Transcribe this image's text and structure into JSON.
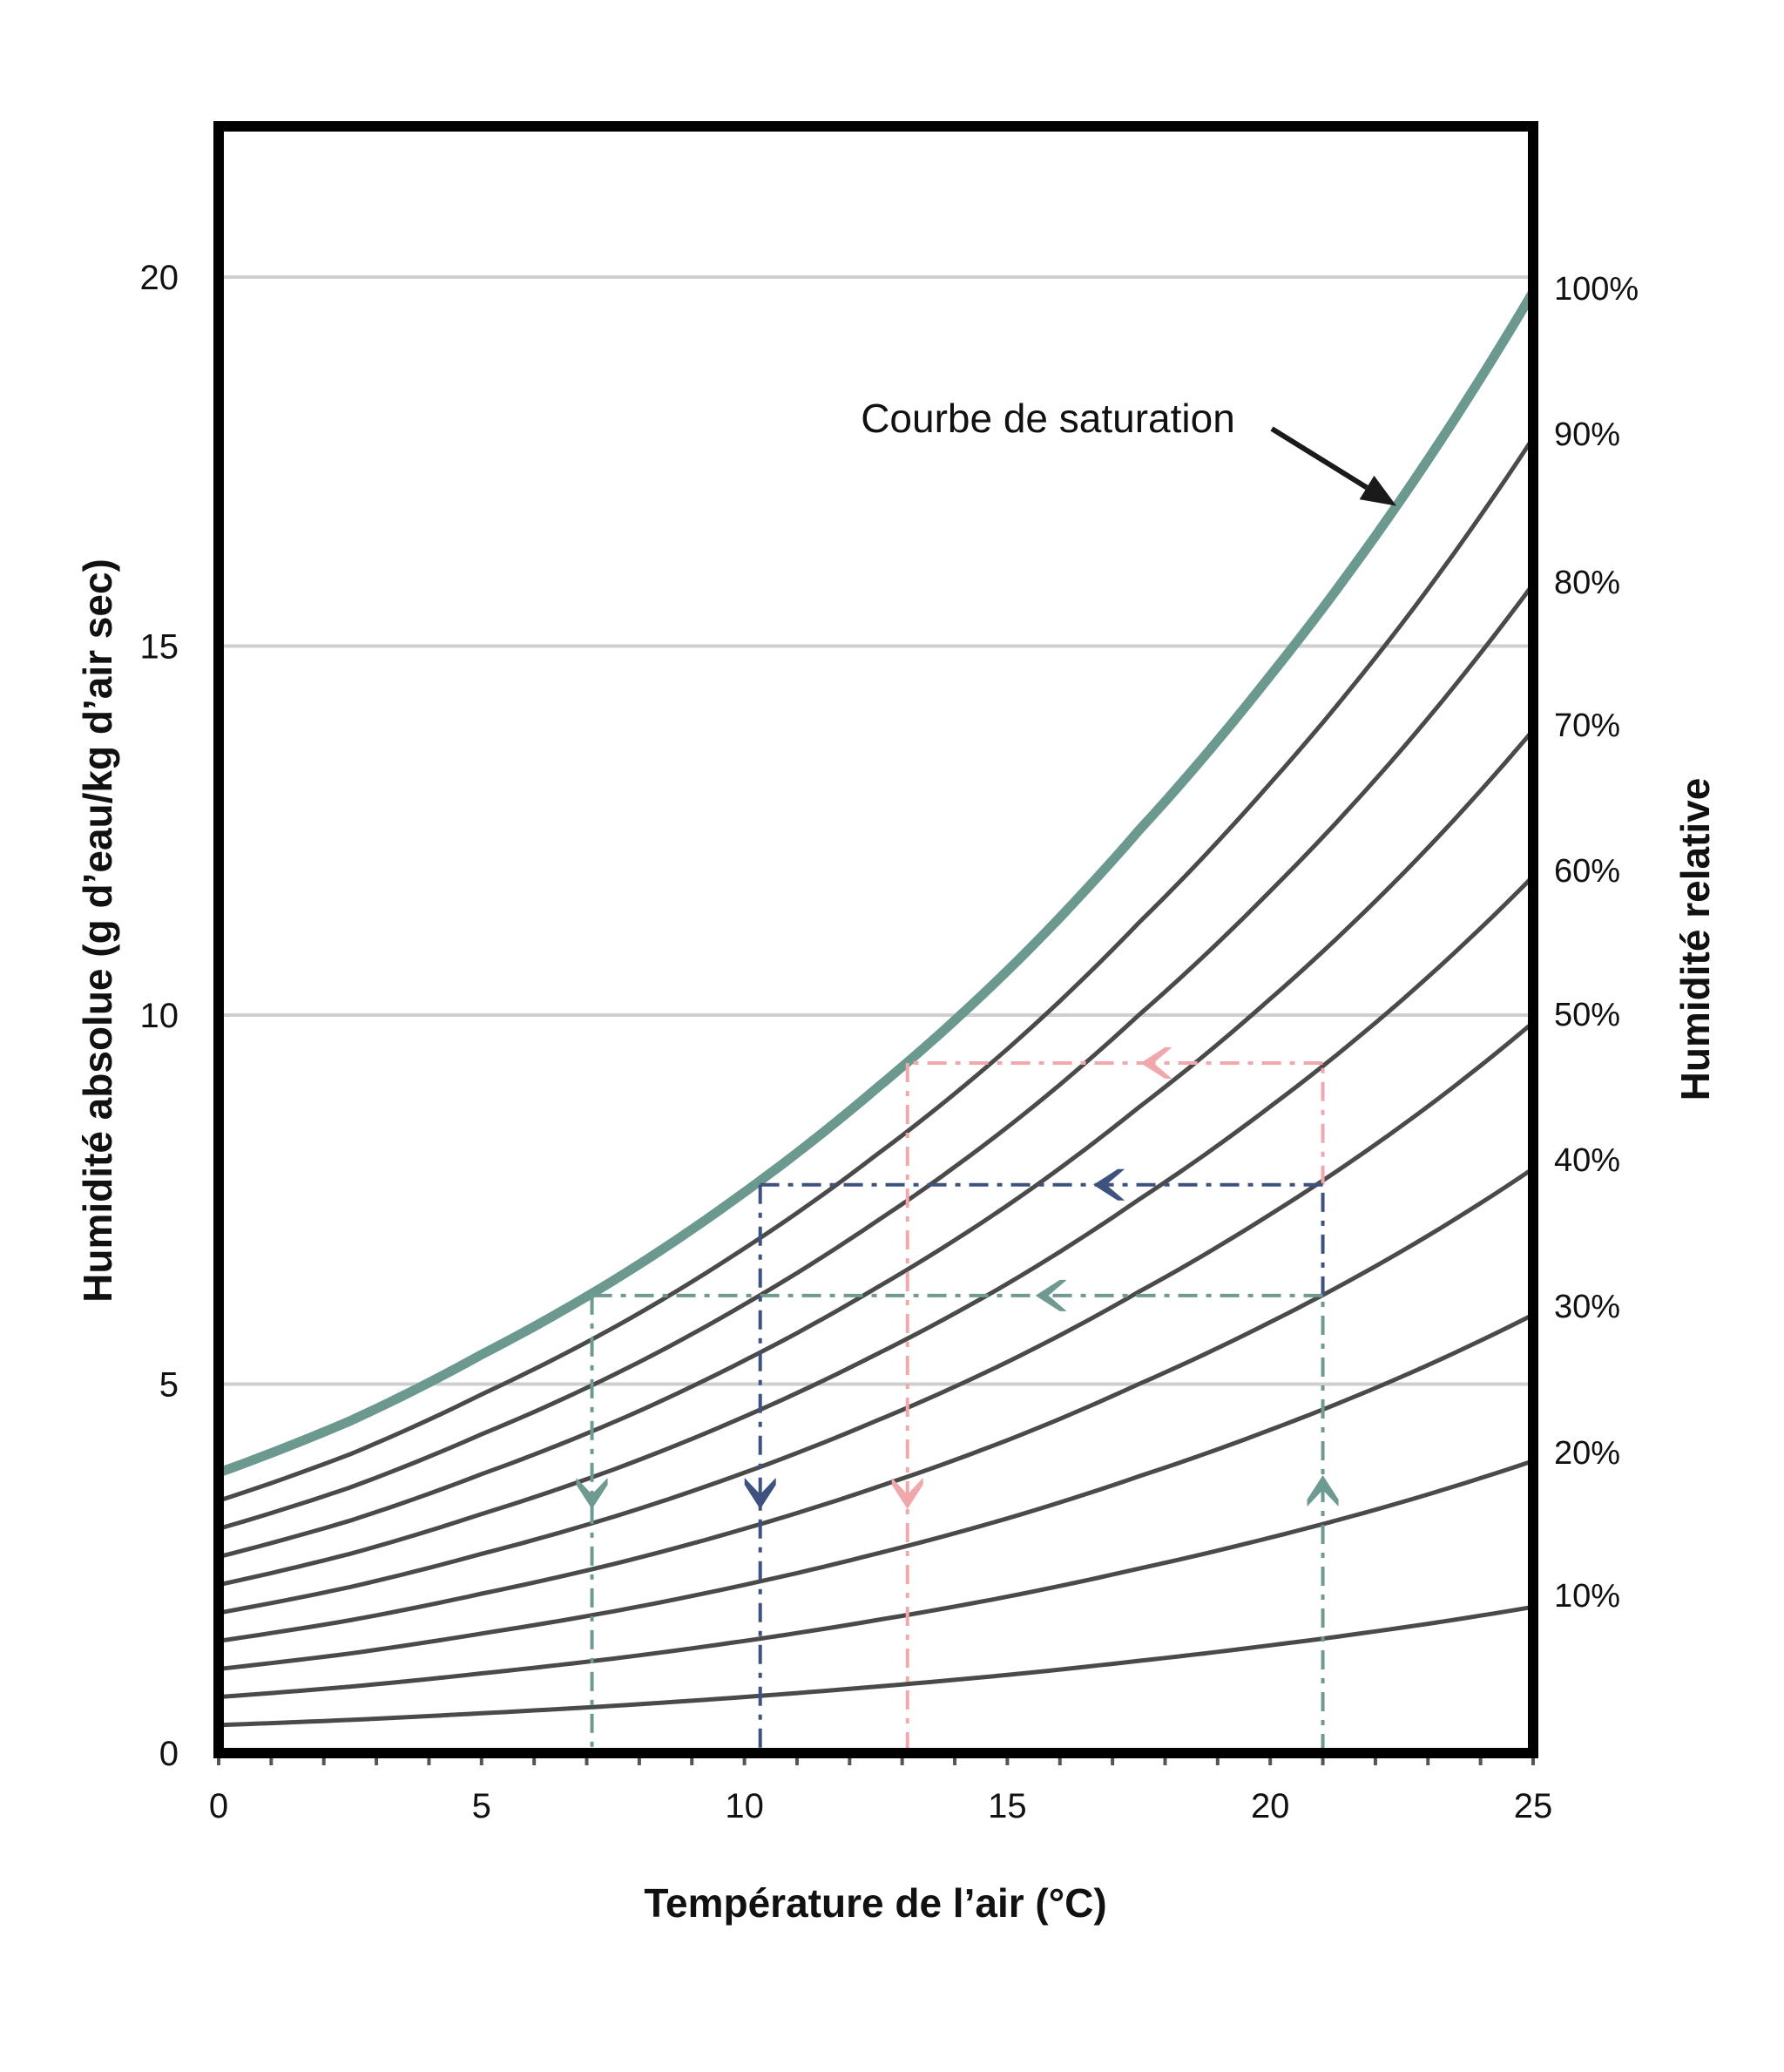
{
  "chart_data": {
    "type": "line",
    "title": "",
    "xlabel": "Température de l’air (°C)",
    "ylabel": "Humidité absolue (g d’eau/kg d’air sec)",
    "y2label": "Humidité relative",
    "xlim": [
      0,
      25
    ],
    "ylim": [
      0,
      22
    ],
    "xticks": [
      0,
      5,
      10,
      15,
      20,
      25
    ],
    "xtick_labels": [
      "0",
      "5",
      "10",
      "15",
      "20",
      "25"
    ],
    "x_minor_tick_step": 1,
    "yticks": [
      0,
      5,
      10,
      15,
      20
    ],
    "ytick_labels": [
      "0",
      "5",
      "10",
      "15",
      "20"
    ],
    "grid": "horizontal",
    "saturation_curve": {
      "name": "Courbe de saturation",
      "x": [
        0,
        2.5,
        5,
        7.5,
        10,
        12.5,
        15,
        17.5,
        20,
        22.5,
        25
      ],
      "y": [
        3.8,
        4.5,
        5.4,
        6.4,
        7.6,
        9.0,
        10.6,
        12.5,
        14.6,
        17.0,
        19.8
      ]
    },
    "relative_humidity_curves": [
      {
        "name": "100%",
        "rh": 1.0
      },
      {
        "name": "90%",
        "rh": 0.9
      },
      {
        "name": "80%",
        "rh": 0.8
      },
      {
        "name": "70%",
        "rh": 0.7
      },
      {
        "name": "60%",
        "rh": 0.6
      },
      {
        "name": "50%",
        "rh": 0.5
      },
      {
        "name": "40%",
        "rh": 0.4
      },
      {
        "name": "30%",
        "rh": 0.3
      },
      {
        "name": "20%",
        "rh": 0.2
      },
      {
        "name": "10%",
        "rh": 0.1
      }
    ],
    "guide_paths": [
      {
        "name": "teal-path",
        "color": "#6f9a91",
        "start_temp": 21,
        "humidity": 6.2,
        "dew_point": 7.1,
        "arrow_x": 15.8
      },
      {
        "name": "navy-path",
        "color": "#3e5280",
        "start_temp": 21,
        "humidity": 7.7,
        "dew_point": 10.3,
        "arrow_x": 16.9
      },
      {
        "name": "pink-path",
        "color": "#f0a8ac",
        "start_temp": 21,
        "humidity": 9.35,
        "dew_point": 13.1,
        "arrow_x": 17.8
      }
    ],
    "annotations": [
      {
        "text": "Courbe de saturation",
        "points_to": {
          "x": 22.4,
          "y": 16.9
        }
      }
    ]
  },
  "colors": {
    "saturation": "#6b9990",
    "rh_curve": "#4a4a4a",
    "grid": "#cfcfcf",
    "frame": "#000000"
  }
}
